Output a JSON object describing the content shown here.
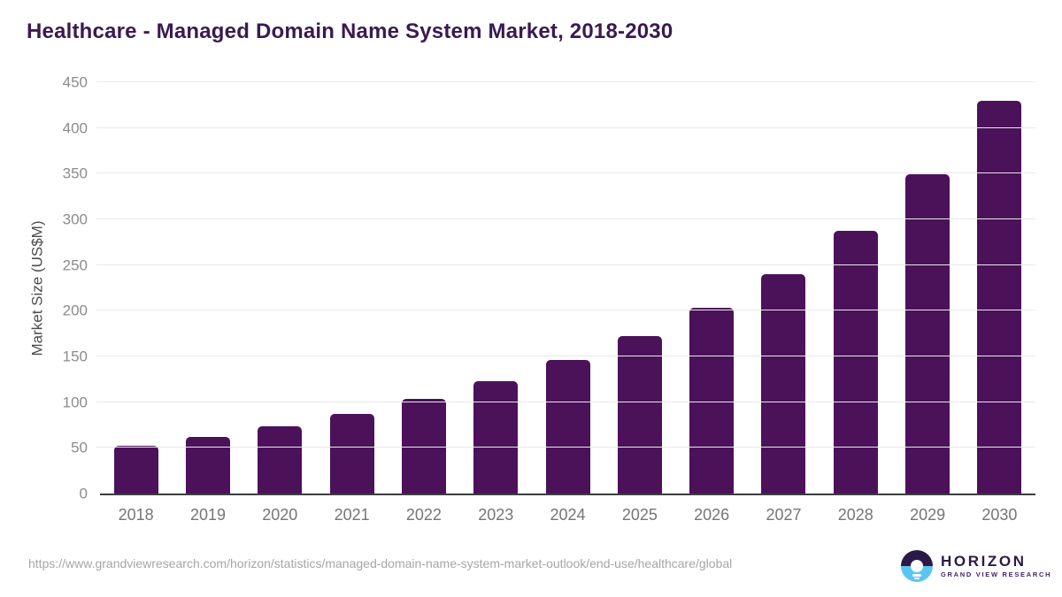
{
  "page": {
    "title": "Healthcare - Managed Domain Name System Market, 2018-2030"
  },
  "chart_data": {
    "type": "bar",
    "title": "Healthcare - Managed Domain Name System Market, 2018-2030",
    "categories": [
      "2018",
      "2019",
      "2020",
      "2021",
      "2022",
      "2023",
      "2024",
      "2025",
      "2026",
      "2027",
      "2028",
      "2029",
      "2030"
    ],
    "values": [
      52,
      62,
      74,
      87,
      104,
      123,
      146,
      172,
      203,
      240,
      287,
      349,
      430
    ],
    "xlabel": "",
    "ylabel": "Market Size (US$M)",
    "ylim": [
      0,
      450
    ],
    "yticks": [
      0,
      50,
      100,
      150,
      200,
      250,
      300,
      350,
      400,
      450
    ],
    "grid": true,
    "legend": "none",
    "bar_color": "#4b1259"
  },
  "footer": {
    "source_url": "https://www.grandviewresearch.com/horizon/statistics/managed-domain-name-system-market-outlook/end-use/healthcare/global",
    "logo": {
      "brand": "HORIZON",
      "tagline": "GRAND VIEW RESEARCH"
    }
  },
  "colors": {
    "title_text": "#3a1a51",
    "bar": "#4b1259",
    "axis_line": "#3d3d3d",
    "gridline": "#e8e8e8",
    "y_tick_label": "#8c8c8c",
    "y_axis_title": "#4c4c4c",
    "x_tick_label": "#757575",
    "source_url_text": "#a6a6a6",
    "logo_purple": "#2b1a47",
    "logo_blue": "#5bc5f2"
  }
}
